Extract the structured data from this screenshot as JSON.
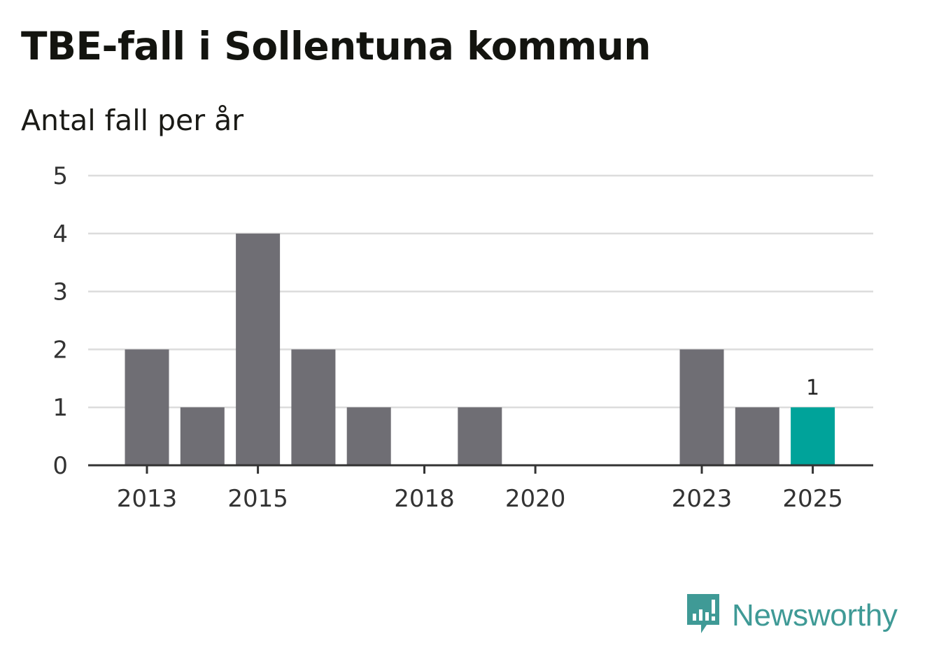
{
  "header": {
    "title": "TBE-fall i Sollentuna kommun",
    "subtitle": "Antal fall per år"
  },
  "brand": {
    "name": "Newsworthy",
    "icon": "newsworthy-logo-icon",
    "color": "#3f9a96"
  },
  "chart_data": {
    "type": "bar",
    "title": "TBE-fall i Sollentuna kommun",
    "subtitle": "Antal fall per år",
    "categories": [
      "2013",
      "2014",
      "2015",
      "2016",
      "2017",
      "2018",
      "2019",
      "2020",
      "2021",
      "2022",
      "2023",
      "2024",
      "2025"
    ],
    "values": [
      2,
      1,
      4,
      2,
      1,
      0,
      1,
      0,
      0,
      0,
      2,
      1,
      1
    ],
    "x_tick_labels": [
      "2013",
      "2015",
      "2018",
      "2020",
      "2023",
      "2025"
    ],
    "y_ticks": [
      0,
      1,
      2,
      3,
      4,
      5
    ],
    "ylim": [
      0,
      5
    ],
    "grid": true,
    "highlight_category": "2025",
    "data_labels": [
      {
        "category": "2025",
        "text": "1"
      }
    ],
    "colors": {
      "bar": "#6f6e74",
      "highlight": "#00a39a",
      "grid": "#dcdcdc",
      "axis": "#333333"
    }
  }
}
